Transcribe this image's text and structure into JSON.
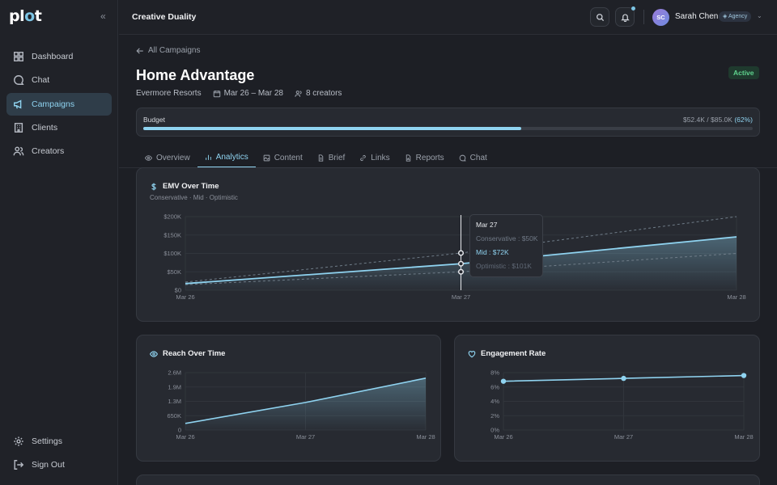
{
  "sidebar": {
    "logo": {
      "pre": "pl",
      "dot": "o",
      "post": "t"
    },
    "items": [
      {
        "label": "Dashboard",
        "icon": "grid-icon"
      },
      {
        "label": "Chat",
        "icon": "chat-icon"
      },
      {
        "label": "Campaigns",
        "icon": "megaphone-icon",
        "active": true
      },
      {
        "label": "Clients",
        "icon": "building-icon"
      },
      {
        "label": "Creators",
        "icon": "users-icon"
      }
    ],
    "bottom": [
      {
        "label": "Settings",
        "icon": "gear-icon"
      },
      {
        "label": "Sign Out",
        "icon": "sign-out-icon"
      }
    ]
  },
  "header": {
    "workspace": "Creative Duality",
    "user": {
      "initials": "SC",
      "name": "Sarah Chen",
      "badge": "Agency"
    }
  },
  "campaign": {
    "back_label": "All Campaigns",
    "title": "Home Advantage",
    "status": "Active",
    "client": "Evermore Resorts",
    "dates": "Mar 26 – Mar 28",
    "creators": "8 creators"
  },
  "budget": {
    "label": "Budget",
    "spent": "$52.4K / $85.0K",
    "pct_label": "(62%)",
    "fraction": 0.62
  },
  "tabs": [
    {
      "label": "Overview",
      "icon": "eye-icon"
    },
    {
      "label": "Analytics",
      "icon": "bar-chart-icon",
      "active": true
    },
    {
      "label": "Content",
      "icon": "image-icon"
    },
    {
      "label": "Brief",
      "icon": "file-icon"
    },
    {
      "label": "Links",
      "icon": "link-icon"
    },
    {
      "label": "Reports",
      "icon": "report-icon"
    },
    {
      "label": "Chat",
      "icon": "chat-icon"
    }
  ],
  "tooltip": {
    "date": "Mar 27",
    "conservative": "Conservative : $50K",
    "mid": "Mid : $72K",
    "optimistic": "Optimistic : $101K"
  },
  "colors": {
    "accent": "#8fd3f0",
    "active_green": "#5fd38e",
    "bg": "#1d1f25",
    "card": "#272a31"
  },
  "chart_data": [
    {
      "type": "area",
      "title": "EMV Over Time",
      "subtitle": "Conservative · Mid · Optimistic",
      "x": [
        "Mar 26",
        "Mar 27",
        "Mar 28"
      ],
      "yticks": [
        "$0",
        "$50K",
        "$100K",
        "$150K",
        "$200K"
      ],
      "ylim": [
        0,
        200
      ],
      "series": [
        {
          "name": "Conservative",
          "values": [
            15,
            50,
            100
          ]
        },
        {
          "name": "Mid",
          "values": [
            18,
            72,
            145
          ]
        },
        {
          "name": "Optimistic",
          "values": [
            22,
            101,
            200
          ]
        }
      ],
      "grid": true
    },
    {
      "type": "area",
      "title": "Reach Over Time",
      "x": [
        "Mar 26",
        "Mar 27",
        "Mar 28"
      ],
      "yticks": [
        "0",
        "650K",
        "1.3M",
        "1.9M",
        "2.6M"
      ],
      "ylim": [
        0,
        2.6
      ],
      "series": [
        {
          "values": [
            0.3,
            1.25,
            2.35
          ]
        }
      ],
      "grid": true
    },
    {
      "type": "line",
      "title": "Engagement Rate",
      "x": [
        "Mar 26",
        "Mar 27",
        "Mar 28"
      ],
      "yticks": [
        "0%",
        "2%",
        "4%",
        "6%",
        "8%"
      ],
      "ylim": [
        0,
        8
      ],
      "series": [
        {
          "values": [
            6.8,
            7.2,
            7.6
          ]
        }
      ],
      "grid": true
    }
  ]
}
